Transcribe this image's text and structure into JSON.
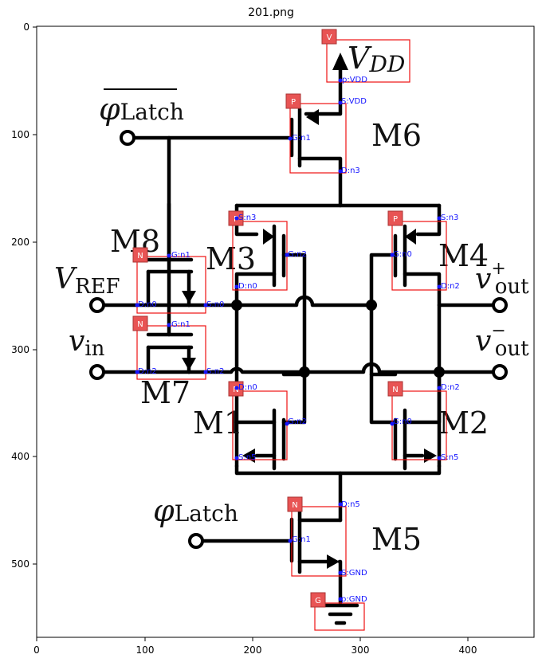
{
  "title": "201.png",
  "axes": {
    "x_ticks": [
      "0",
      "100",
      "200",
      "300",
      "400"
    ],
    "y_ticks": [
      "0",
      "100",
      "200",
      "300",
      "400",
      "500"
    ]
  },
  "labels": {
    "vdd_main": "V",
    "vdd_sub": "DD",
    "latch_bar_main": "φ",
    "latch_bar_sub": "Latch",
    "latch_main": "φ",
    "latch_sub": "Latch",
    "vref_main": "V",
    "vref_sub": "REF",
    "vin_main": "v",
    "vin_sub": "in",
    "vout_plus_main": "v",
    "vout_plus_sup": "+",
    "vout_plus_sub": "out",
    "vout_minus_main": "v",
    "vout_minus_sup": "−",
    "vout_minus_sub": "out"
  },
  "devices": {
    "m6": "M6",
    "m3": "M3",
    "m4": "M4",
    "m8": "M8",
    "m7": "M7",
    "m1": "M1",
    "m2": "M2",
    "m5": "M5"
  },
  "tags": {
    "vdd": "V",
    "m6": "P",
    "m3": "P",
    "m4": "P",
    "m8": "N",
    "m7": "N",
    "m1": "N",
    "m2": "N",
    "m5": "N",
    "gnd": "G"
  },
  "pins": {
    "vdd": "p:VDD",
    "m6_s": "S:VDD",
    "m6_g": "G:n1",
    "m6_d": "D:n3",
    "m3_s": "S:n3",
    "m3_g": "G:n2",
    "m3_d": "D:n0",
    "m4_s": "S:n3",
    "m4_g": "G:n0",
    "m4_d": "D:n2",
    "m8_g": "G:n1",
    "m8_d": "D:n0",
    "m8_s": "S:n0",
    "m7_g": "G:n1",
    "m7_d": "D:n2",
    "m7_s": "S:n2",
    "m1_d": "D:n0",
    "m1_g": "G:n2",
    "m1_s": "S:n5",
    "m2_d": "D:n2",
    "m2_g": "G:n0",
    "m2_s": "S:n5",
    "m5_d": "D:n5",
    "m5_g": "G:n1",
    "m5_s": "S:GND",
    "gnd": "p:GND"
  }
}
